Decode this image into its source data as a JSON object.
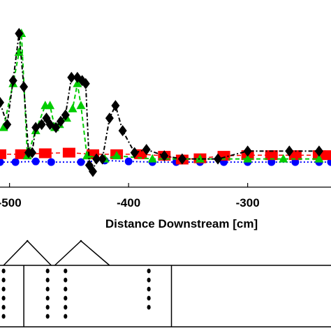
{
  "chart_data": {
    "type": "line",
    "xlabel": "Distance Downstream [cm]",
    "ylabel": "",
    "title": "",
    "x_ticks": [
      -500,
      -400,
      -300
    ],
    "x_tick_labels": [
      "-500",
      "-400",
      "-300"
    ],
    "xlim": [
      -508,
      -230
    ],
    "ylim": [
      -0.5,
      4.8
    ],
    "grid": false,
    "series": [
      {
        "marker": "circle",
        "color": "#0000ff",
        "line": "dotted",
        "x": [
          -508,
          -495,
          -478,
          -465,
          -440,
          -420,
          -400,
          -380,
          -360,
          -340,
          -320,
          -300,
          -280,
          -260,
          -240,
          -230
        ],
        "y": [
          0.3,
          0.3,
          0.32,
          0.3,
          0.3,
          0.35,
          0.32,
          0.3,
          0.3,
          0.3,
          0.3,
          0.3,
          0.3,
          0.3,
          0.3,
          0.3
        ]
      },
      {
        "marker": "square",
        "color": "#ff0000",
        "line": "dashed",
        "x": [
          -508,
          -490,
          -470,
          -450,
          -430,
          -410,
          -390,
          -370,
          -355,
          -340,
          -320,
          -300,
          -280,
          -260,
          -240,
          -230
        ],
        "y": [
          0.55,
          0.55,
          0.58,
          0.6,
          0.55,
          0.55,
          0.55,
          0.5,
          0.38,
          0.42,
          0.5,
          0.52,
          0.52,
          0.52,
          0.52,
          0.52
        ]
      },
      {
        "marker": "triangle",
        "color": "#00cc00",
        "line": "dashed",
        "x": [
          -505,
          -497,
          -492,
          -490,
          -485,
          -478,
          -470,
          -466,
          -462,
          -458,
          -452,
          -447,
          -443,
          -440,
          -435,
          -420,
          -410,
          -380,
          -340,
          -300,
          -270,
          -240
        ],
        "y": [
          1.4,
          2.8,
          3.8,
          4.4,
          0.5,
          1.3,
          2.1,
          2.1,
          1.4,
          1.5,
          1.7,
          2.0,
          2.8,
          2.1,
          0.5,
          0.4,
          0.5,
          0.4,
          0.4,
          0.4,
          0.4,
          0.4
        ]
      },
      {
        "marker": "diamond",
        "color": "#000000",
        "line": "dashdot",
        "x": [
          -508,
          -502,
          -497,
          -492,
          -488,
          -484,
          -481,
          -478,
          -473,
          -469,
          -466,
          -461,
          -457,
          -453,
          -448,
          -443,
          -439,
          -436,
          -433,
          -430,
          -427,
          -422,
          -416,
          -411,
          -405,
          -395,
          -385,
          -370,
          -355,
          -325,
          -300,
          -265,
          -240
        ],
        "y": [
          2.2,
          1.5,
          2.9,
          4.4,
          2.7,
          0.6,
          0.6,
          1.4,
          1.5,
          1.7,
          1.5,
          1.4,
          1.6,
          1.8,
          3.0,
          3.0,
          2.9,
          2.8,
          0.2,
          0.0,
          0.4,
          0.4,
          1.7,
          2.1,
          1.3,
          0.6,
          0.7,
          0.5,
          0.4,
          0.4,
          0.65,
          0.65,
          0.65
        ]
      }
    ]
  },
  "schematic": {
    "sensor_columns": [
      {
        "x": -505,
        "points": 6
      },
      {
        "x": -468,
        "points": 6
      },
      {
        "x": -453,
        "points": 6
      },
      {
        "x": -383,
        "points": 5
      }
    ],
    "vertical_lines_x": [
      -488,
      -364
    ],
    "bedforms": [
      {
        "left_x": -505,
        "peak_x": -485,
        "right_x": -465
      },
      {
        "left_x": -462,
        "peak_x": -440,
        "right_x": -416
      }
    ]
  }
}
